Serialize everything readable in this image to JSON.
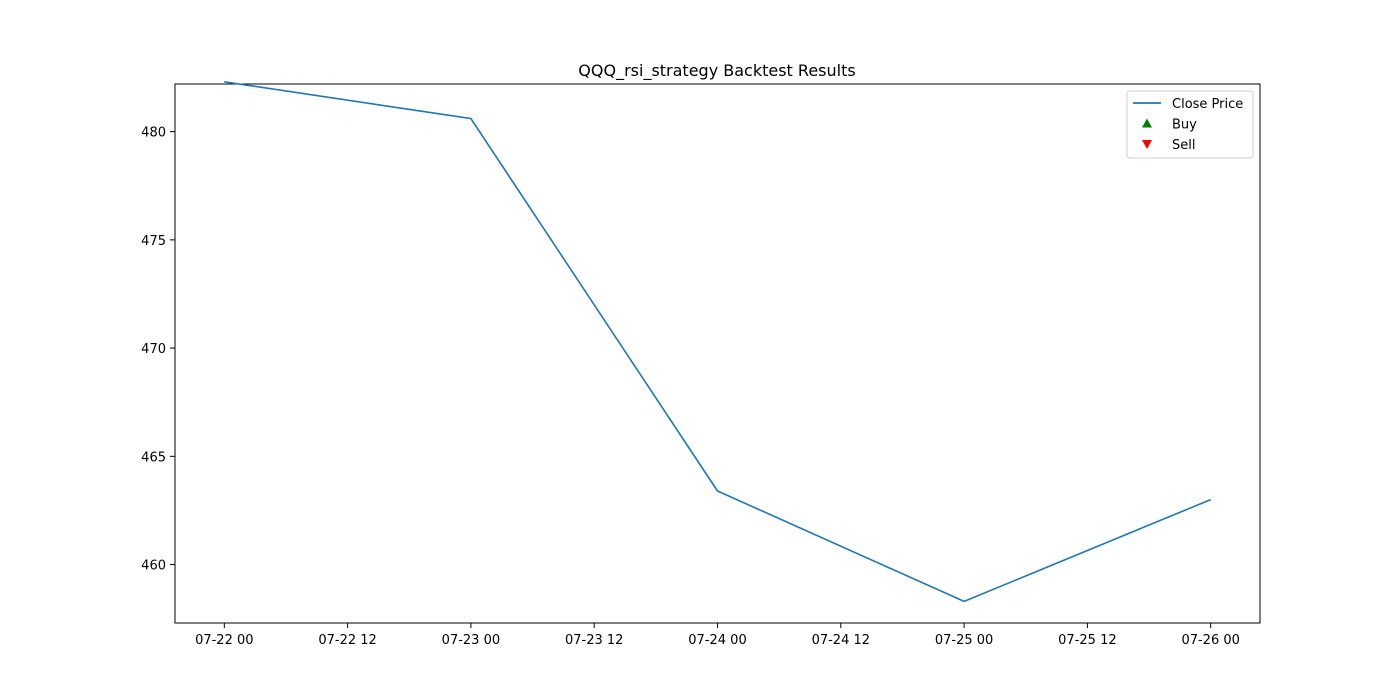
{
  "chart_data": {
    "type": "line",
    "title": "QQQ_rsi_strategy Backtest Results",
    "xlabel": "",
    "ylabel": "",
    "x_ticks": [
      "07-22 00",
      "07-22 12",
      "07-23 00",
      "07-23 12",
      "07-24 00",
      "07-24 12",
      "07-25 00",
      "07-25 12",
      "07-26 00"
    ],
    "y_ticks": [
      460,
      465,
      470,
      475,
      480
    ],
    "xlim": [
      "07-21 19:12",
      "07-26 04:48"
    ],
    "ylim": [
      457.3,
      482.2
    ],
    "grid": false,
    "legend_position": "top-right",
    "series": [
      {
        "name": "Close Price",
        "color": "#1f77b4",
        "x": [
          "07-22 00",
          "07-23 00",
          "07-24 00",
          "07-25 00",
          "07-26 00"
        ],
        "values": [
          482.3,
          480.6,
          463.4,
          458.3,
          463.0
        ]
      }
    ],
    "buy_signals": [],
    "sell_signals": [],
    "legend": [
      {
        "label": "Close Price",
        "kind": "line",
        "color": "#1f77b4"
      },
      {
        "label": "Buy",
        "kind": "triangle-up",
        "color": "#008000"
      },
      {
        "label": "Sell",
        "kind": "triangle-down",
        "color": "#ff0000"
      }
    ]
  }
}
